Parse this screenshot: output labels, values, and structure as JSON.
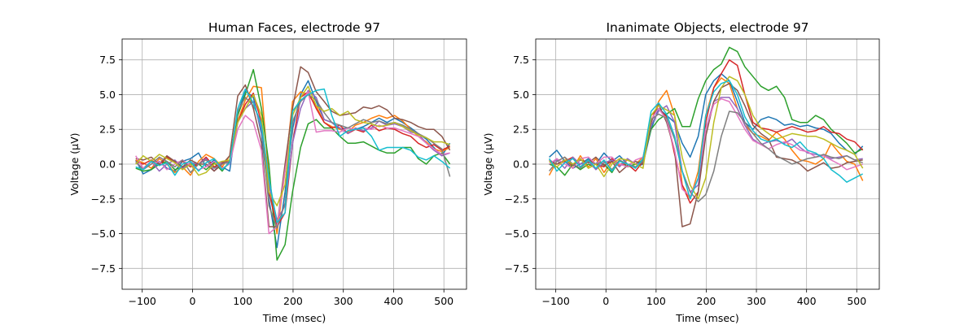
{
  "chart_data": [
    {
      "type": "line",
      "title": "Human Faces, electrode 97",
      "xlabel": "Time (msec)",
      "ylabel": "Voltage (µV)",
      "xlim": [
        -140,
        545
      ],
      "ylim": [
        -9.0,
        9.0
      ],
      "xticks": [
        -100,
        0,
        100,
        200,
        300,
        400,
        500
      ],
      "xtick_labels": [
        "−100",
        "0",
        "100",
        "200",
        "300",
        "400",
        "500"
      ],
      "yticks": [
        -7.5,
        -5.0,
        -2.5,
        0.0,
        2.5,
        5.0,
        7.5
      ],
      "ytick_labels": [
        "−7.5",
        "−5.0",
        "−2.5",
        "0.0",
        "2.5",
        "5.0",
        "7.5"
      ],
      "grid": true,
      "x": [
        -113,
        -98,
        -82,
        -66,
        -51,
        -35,
        -20,
        -4,
        12,
        27,
        43,
        59,
        74,
        90,
        105,
        121,
        137,
        152,
        168,
        184,
        199,
        215,
        230,
        246,
        262,
        277,
        293,
        309,
        324,
        340,
        356,
        371,
        387,
        402,
        418,
        434,
        449,
        465,
        480,
        496,
        512
      ],
      "series": [
        {
          "color": "#1f77b4",
          "values": [
            0.3,
            -0.7,
            -0.4,
            0.2,
            -0.3,
            -0.5,
            0.2,
            0.4,
            0.8,
            -0.2,
            0.3,
            -0.2,
            -0.5,
            3.6,
            5.3,
            4.8,
            2.2,
            -2.5,
            -6.0,
            -2.0,
            2.5,
            5.0,
            6.0,
            4.5,
            3.2,
            3.0,
            2.5,
            2.6,
            2.5,
            2.7,
            3.0,
            3.3,
            3.0,
            3.3,
            3.0,
            2.6,
            2.2,
            1.8,
            1.2,
            0.6,
            1.5
          ]
        },
        {
          "color": "#ff7f0e",
          "values": [
            0.3,
            0.1,
            -0.3,
            0.4,
            0.0,
            -0.6,
            -0.2,
            -0.8,
            0.2,
            0.7,
            0.4,
            -0.2,
            0.6,
            3.1,
            4.6,
            5.6,
            5.5,
            -1.0,
            -5.0,
            -0.5,
            4.5,
            5.2,
            5.0,
            4.2,
            3.0,
            2.7,
            2.5,
            2.3,
            2.8,
            3.0,
            3.3,
            3.5,
            3.3,
            3.5,
            3.1,
            2.5,
            2.0,
            1.6,
            1.1,
            0.9,
            1.2
          ]
        },
        {
          "color": "#2ca02c",
          "values": [
            -0.3,
            -0.5,
            -0.4,
            0.0,
            0.2,
            -0.4,
            -0.2,
            0.0,
            0.0,
            -0.4,
            0.1,
            -0.5,
            0.2,
            3.5,
            5.0,
            6.8,
            4.0,
            0.0,
            -6.9,
            -5.8,
            -2.0,
            1.2,
            2.9,
            3.2,
            2.6,
            2.6,
            2.0,
            1.5,
            1.5,
            1.6,
            1.3,
            1.0,
            0.8,
            0.8,
            1.2,
            1.2,
            0.4,
            0.0,
            0.6,
            0.8,
            0.0
          ]
        },
        {
          "color": "#d62728",
          "values": [
            0.2,
            0.0,
            0.3,
            -0.1,
            0.5,
            0.1,
            0.2,
            -0.2,
            0.0,
            0.5,
            -0.2,
            0.1,
            0.3,
            3.0,
            4.3,
            5.1,
            3.0,
            -2.0,
            -4.5,
            -3.5,
            1.5,
            4.8,
            5.2,
            4.0,
            3.0,
            2.6,
            2.8,
            2.2,
            2.5,
            2.3,
            2.8,
            2.4,
            2.6,
            2.5,
            2.2,
            2.0,
            1.5,
            1.2,
            1.4,
            1.0,
            1.3
          ]
        },
        {
          "color": "#9467bd",
          "values": [
            0.1,
            -0.3,
            0.2,
            -0.5,
            0.0,
            0.3,
            -0.3,
            0.1,
            0.0,
            0.4,
            -0.5,
            0.2,
            0.0,
            3.0,
            4.0,
            4.5,
            2.5,
            -1.5,
            -4.0,
            -3.0,
            1.5,
            4.0,
            5.3,
            4.8,
            3.2,
            3.0,
            2.6,
            2.2,
            2.6,
            2.4,
            2.6,
            3.1,
            2.8,
            2.9,
            2.7,
            2.3,
            2.2,
            1.5,
            1.0,
            0.6,
            0.8
          ]
        },
        {
          "color": "#8c564b",
          "values": [
            0.4,
            0.3,
            0.5,
            0.0,
            0.6,
            0.2,
            -0.2,
            0.3,
            0.0,
            0.0,
            -0.5,
            0.0,
            0.6,
            4.9,
            5.7,
            4.0,
            1.5,
            -4.5,
            -4.5,
            0.0,
            4.0,
            7.0,
            6.6,
            5.2,
            4.5,
            3.8,
            3.5,
            3.6,
            3.7,
            4.1,
            4.0,
            4.2,
            3.9,
            3.3,
            3.2,
            3.0,
            2.7,
            2.5,
            2.5,
            2.0,
            1.0
          ]
        },
        {
          "color": "#e377c2",
          "values": [
            0.6,
            -0.3,
            0.0,
            0.2,
            -0.4,
            0.0,
            0.3,
            -0.1,
            -0.4,
            -0.2,
            0.2,
            -0.3,
            0.0,
            2.5,
            3.5,
            3.0,
            1.0,
            -5.0,
            -4.5,
            -0.5,
            3.0,
            4.5,
            5.2,
            2.3,
            2.4,
            2.4,
            2.3,
            2.6,
            2.5,
            2.6,
            2.5,
            2.8,
            2.6,
            2.6,
            2.4,
            2.2,
            2.0,
            1.5,
            1.1,
            0.7,
            0.8
          ]
        },
        {
          "color": "#7f7f7f",
          "values": [
            0.2,
            -0.4,
            0.0,
            0.5,
            0.2,
            -0.2,
            0.3,
            -0.6,
            0.0,
            0.3,
            -0.3,
            0.0,
            0.2,
            3.8,
            4.8,
            4.2,
            3.0,
            -3.0,
            -4.6,
            -2.8,
            3.0,
            4.5,
            5.0,
            4.6,
            3.7,
            3.0,
            2.8,
            2.6,
            2.9,
            3.2,
            3.0,
            3.1,
            2.9,
            3.0,
            2.8,
            2.5,
            2.2,
            1.9,
            1.5,
            1.1,
            -0.9
          ]
        },
        {
          "color": "#bcbd22",
          "values": [
            0.0,
            0.6,
            0.2,
            0.7,
            0.4,
            0.1,
            -0.4,
            0.0,
            -0.8,
            -0.6,
            0.0,
            0.2,
            0.3,
            3.0,
            4.0,
            5.0,
            3.5,
            -2.0,
            -3.0,
            -1.5,
            3.5,
            4.8,
            5.6,
            4.2,
            3.8,
            4.0,
            3.5,
            3.8,
            3.2,
            3.0,
            2.9,
            2.7,
            2.8,
            3.0,
            2.7,
            2.4,
            2.1,
            1.9,
            1.6,
            1.6,
            1.4
          ]
        },
        {
          "color": "#17becf",
          "values": [
            -0.2,
            -0.4,
            0.2,
            -0.1,
            0.1,
            -0.8,
            0.0,
            0.2,
            -0.5,
            0.1,
            0.4,
            -0.4,
            0.1,
            4.0,
            5.4,
            4.4,
            2.8,
            -1.0,
            -4.2,
            -3.5,
            3.8,
            4.6,
            5.0,
            5.3,
            5.4,
            3.5,
            2.0,
            2.4,
            2.5,
            2.6,
            2.0,
            1.0,
            1.2,
            1.2,
            1.2,
            1.0,
            0.5,
            0.3,
            0.6,
            0.2,
            -0.3
          ]
        }
      ]
    },
    {
      "type": "line",
      "title": "Inanimate Objects, electrode 97",
      "xlabel": "Time (msec)",
      "ylabel": "Voltage (µV)",
      "xlim": [
        -140,
        545
      ],
      "ylim": [
        -9.0,
        9.0
      ],
      "xticks": [
        -100,
        0,
        100,
        200,
        300,
        400,
        500
      ],
      "xtick_labels": [
        "−100",
        "0",
        "100",
        "200",
        "300",
        "400",
        "500"
      ],
      "yticks": [
        -7.5,
        -5.0,
        -2.5,
        0.0,
        2.5,
        5.0,
        7.5
      ],
      "ytick_labels": [
        "−7.5",
        "−5.0",
        "−2.5",
        "0.0",
        "2.5",
        "5.0",
        "7.5"
      ],
      "grid": true,
      "x": [
        -113,
        -98,
        -82,
        -66,
        -51,
        -35,
        -20,
        -4,
        12,
        27,
        43,
        59,
        74,
        90,
        105,
        121,
        137,
        152,
        168,
        184,
        199,
        215,
        230,
        246,
        262,
        277,
        293,
        309,
        324,
        340,
        356,
        371,
        387,
        402,
        418,
        434,
        449,
        465,
        480,
        496,
        512
      ],
      "series": [
        {
          "color": "#1f77b4",
          "values": [
            0.5,
            1.0,
            0.2,
            -0.3,
            0.0,
            0.4,
            0.0,
            0.8,
            0.2,
            0.6,
            0.0,
            -0.2,
            0.0,
            2.5,
            4.0,
            3.5,
            3.0,
            1.5,
            0.5,
            2.0,
            5.0,
            6.0,
            6.5,
            6.0,
            4.5,
            3.0,
            2.5,
            3.2,
            3.4,
            3.2,
            2.8,
            2.9,
            2.7,
            2.8,
            2.6,
            2.5,
            2.2,
            1.5,
            1.0,
            0.7,
            1.3
          ]
        },
        {
          "color": "#ff7f0e",
          "values": [
            -0.8,
            0.2,
            0.5,
            -0.3,
            0.6,
            -0.2,
            0.4,
            -0.6,
            0.2,
            -0.1,
            0.3,
            0.0,
            0.5,
            3.0,
            4.5,
            5.3,
            3.5,
            -1.5,
            -2.5,
            -0.5,
            3.5,
            5.5,
            6.2,
            5.8,
            4.0,
            2.8,
            2.2,
            2.0,
            1.7,
            2.3,
            1.8,
            1.0,
            0.3,
            0.2,
            0.0,
            0.4,
            1.5,
            0.8,
            0.2,
            0.0,
            -1.2
          ]
        },
        {
          "color": "#2ca02c",
          "values": [
            0.0,
            -0.2,
            -0.8,
            0.0,
            -0.4,
            0.0,
            -0.3,
            0.0,
            -0.6,
            0.3,
            -0.2,
            0.0,
            0.3,
            2.5,
            3.2,
            3.6,
            4.0,
            2.7,
            2.7,
            4.7,
            6.0,
            6.8,
            7.2,
            8.4,
            8.1,
            7.0,
            6.3,
            5.6,
            5.3,
            5.6,
            4.8,
            3.2,
            3.0,
            3.0,
            3.5,
            3.2,
            2.5,
            2.0,
            1.5,
            0.8,
            1.1
          ]
        },
        {
          "color": "#d62728",
          "values": [
            0.3,
            0.0,
            0.2,
            0.5,
            -0.2,
            0.3,
            0.0,
            -0.2,
            0.4,
            0.0,
            0.0,
            -0.5,
            0.2,
            3.5,
            4.0,
            3.4,
            0.7,
            -1.5,
            -2.8,
            -2.0,
            3.0,
            5.5,
            6.5,
            7.5,
            7.1,
            5.0,
            3.0,
            2.6,
            2.5,
            2.3,
            2.5,
            2.7,
            2.5,
            2.3,
            2.4,
            2.7,
            2.3,
            2.2,
            1.8,
            1.6,
            1.0
          ]
        },
        {
          "color": "#9467bd",
          "values": [
            0.0,
            0.3,
            -0.3,
            0.5,
            0.0,
            0.2,
            -0.4,
            0.1,
            0.3,
            -0.2,
            0.4,
            0.0,
            0.2,
            2.8,
            3.8,
            4.2,
            3.0,
            -0.5,
            -2.0,
            -1.5,
            2.5,
            4.5,
            4.8,
            4.8,
            4.0,
            2.8,
            1.8,
            1.4,
            1.6,
            1.7,
            1.5,
            1.8,
            1.2,
            0.8,
            0.7,
            0.6,
            0.4,
            0.5,
            0.6,
            0.3,
            0.4
          ]
        },
        {
          "color": "#8c564b",
          "values": [
            0.2,
            0.0,
            0.3,
            -0.1,
            0.3,
            0.1,
            0.5,
            -0.1,
            0.2,
            -0.6,
            -0.1,
            0.2,
            0.0,
            3.0,
            4.3,
            3.0,
            1.0,
            -4.5,
            -4.3,
            -2.0,
            2.0,
            4.5,
            5.5,
            5.8,
            5.3,
            4.2,
            2.8,
            2.2,
            1.8,
            0.5,
            0.4,
            0.3,
            0.0,
            -0.5,
            -0.2,
            0.1,
            -0.3,
            -0.2,
            0.1,
            0.2,
            0.3
          ]
        },
        {
          "color": "#e377c2",
          "values": [
            0.0,
            0.4,
            0.0,
            -0.3,
            0.4,
            0.5,
            0.0,
            0.5,
            0.5,
            0.0,
            -0.2,
            0.3,
            0.5,
            3.2,
            4.0,
            3.2,
            1.0,
            -1.8,
            -2.3,
            -1.0,
            2.5,
            4.3,
            4.7,
            4.5,
            3.5,
            2.5,
            1.7,
            1.4,
            1.1,
            1.4,
            1.6,
            1.4,
            1.0,
            0.9,
            0.5,
            0.6,
            0.3,
            0.0,
            -0.4,
            -0.2,
            0.0
          ]
        },
        {
          "color": "#7f7f7f",
          "values": [
            -0.5,
            0.2,
            0.5,
            0.0,
            -0.3,
            0.2,
            0.0,
            0.2,
            -0.4,
            0.3,
            0.0,
            -0.2,
            0.2,
            3.2,
            3.6,
            3.3,
            1.8,
            -0.5,
            -2.0,
            -2.7,
            -2.2,
            -0.5,
            2.0,
            3.8,
            3.7,
            3.0,
            2.2,
            1.5,
            1.1,
            0.6,
            0.3,
            0.0,
            0.2,
            0.4,
            0.5,
            0.7,
            0.5,
            0.4,
            0.6,
            0.3,
            0.1
          ]
        },
        {
          "color": "#bcbd22",
          "values": [
            0.2,
            -0.2,
            0.3,
            0.0,
            0.4,
            -0.3,
            0.0,
            -0.9,
            0.0,
            0.4,
            0.3,
            0.0,
            -0.3,
            3.5,
            4.2,
            3.9,
            3.5,
            0.5,
            -1.5,
            -2.5,
            -1.0,
            3.0,
            5.5,
            6.3,
            6.0,
            5.0,
            3.5,
            2.6,
            2.2,
            1.8,
            2.0,
            2.2,
            2.1,
            2.0,
            2.0,
            1.8,
            1.5,
            1.2,
            1.0,
            0.7,
            -0.3
          ]
        },
        {
          "color": "#17becf",
          "values": [
            0.4,
            -0.5,
            0.1,
            0.4,
            -0.2,
            0.3,
            -0.3,
            0.3,
            -0.5,
            0.2,
            0.0,
            -0.3,
            0.4,
            3.8,
            4.4,
            3.6,
            2.0,
            -0.5,
            -2.5,
            -1.0,
            3.5,
            5.2,
            5.8,
            6.0,
            5.0,
            3.4,
            2.4,
            1.8,
            1.6,
            1.8,
            1.4,
            1.2,
            1.6,
            1.0,
            0.8,
            0.4,
            -0.4,
            -0.8,
            -1.3,
            -1.0,
            -0.7
          ]
        }
      ]
    }
  ]
}
